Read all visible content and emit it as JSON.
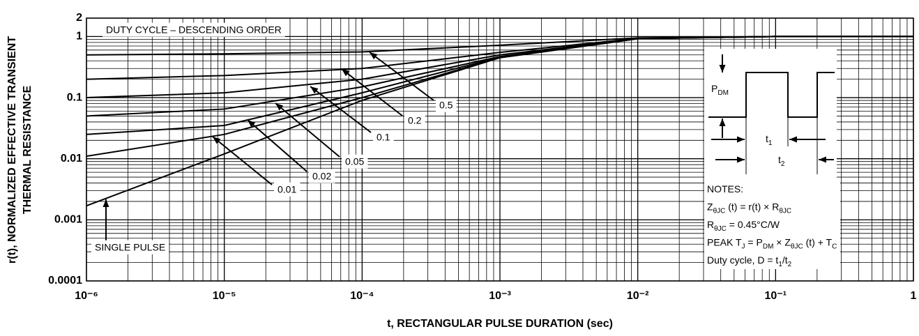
{
  "chart_data": {
    "type": "line",
    "annotation": "DUTY CYCLE – DESCENDING ORDER",
    "x_label": "t, RECTANGULAR PULSE DURATION (sec)",
    "y_label": [
      "r(t), NORMALIZED EFFECTIVE TRANSIENT",
      "THERMAL RESISTANCE"
    ],
    "log_x": true,
    "log_y": true,
    "grid": true,
    "xlim": [
      1e-06,
      1
    ],
    "ylim": [
      0.0001,
      2
    ],
    "xticks": [
      {
        "value": 1e-06,
        "label": "10⁻⁶"
      },
      {
        "value": 1e-05,
        "label": "10⁻⁵"
      },
      {
        "value": 0.0001,
        "label": "10⁻⁴"
      },
      {
        "value": 0.001,
        "label": "10⁻³"
      },
      {
        "value": 0.01,
        "label": "10⁻²"
      },
      {
        "value": 0.1,
        "label": "10⁻¹"
      },
      1
    ],
    "yticks": [
      0.0001,
      0.001,
      0.01,
      0.1,
      1,
      2
    ],
    "x": [
      1e-06,
      1e-05,
      0.0001,
      0.001,
      0.01,
      0.1,
      1
    ],
    "series": [
      {
        "name": "0.5",
        "color": "#000000",
        "values": [
          0.5,
          0.52,
          0.56,
          0.72,
          0.95,
          1,
          1
        ]
      },
      {
        "name": "0.2",
        "color": "#000000",
        "values": [
          0.2,
          0.23,
          0.3,
          0.55,
          0.93,
          1,
          1
        ]
      },
      {
        "name": "0.1",
        "color": "#000000",
        "values": [
          0.1,
          0.12,
          0.2,
          0.5,
          0.92,
          1,
          1
        ]
      },
      {
        "name": "0.05",
        "color": "#000000",
        "values": [
          0.05,
          0.065,
          0.15,
          0.47,
          0.92,
          1,
          1
        ]
      },
      {
        "name": "0.02",
        "color": "#000000",
        "values": [
          0.025,
          0.035,
          0.12,
          0.46,
          0.92,
          1,
          1
        ]
      },
      {
        "name": "0.01",
        "color": "#000000",
        "values": [
          0.011,
          0.025,
          0.1,
          0.45,
          0.92,
          1,
          1
        ]
      },
      {
        "name": "SINGLE PULSE",
        "color": "#000000",
        "values": [
          0.0017,
          0.012,
          0.09,
          0.45,
          0.92,
          1,
          1
        ]
      }
    ]
  },
  "inset": {
    "pdm": [
      "P",
      "DM"
    ],
    "t1": [
      "t",
      "1"
    ],
    "t2": [
      "t",
      "2"
    ],
    "notes": [
      [
        "NOTES:"
      ],
      [
        "Z",
        "θJC",
        " (t) = r(t) × R",
        "θJC"
      ],
      [
        "R",
        "θJC",
        " = 0.45°C/W"
      ],
      [
        "PEAK T",
        "J",
        " = P",
        "DM",
        " × Z",
        "θJC",
        " (t) + T",
        "C"
      ],
      [
        "Duty cycle, D = t",
        "1",
        "/t",
        "2"
      ]
    ]
  }
}
